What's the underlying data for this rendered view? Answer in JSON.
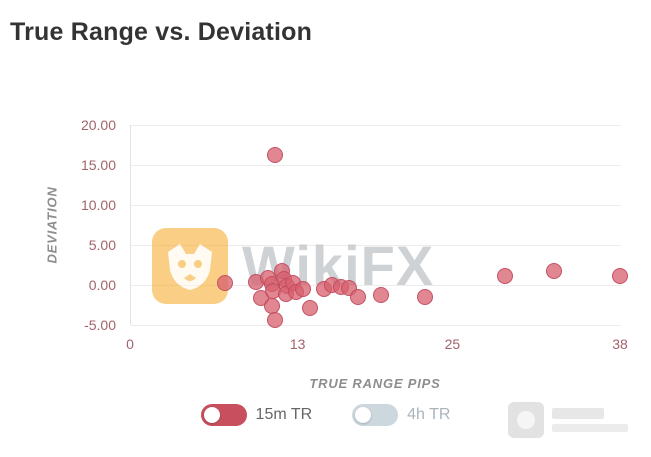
{
  "page": {
    "title": "True Range vs. Deviation"
  },
  "chart_data": {
    "type": "scatter",
    "title": "True Range vs. Deviation",
    "xlabel": "TRUE RANGE PIPS",
    "ylabel": "DEVIATION",
    "xlim": [
      0,
      38
    ],
    "ylim": [
      -5,
      20
    ],
    "x_ticks": [
      0,
      13,
      25,
      38
    ],
    "y_ticks": [
      20,
      15,
      10,
      5,
      0,
      -5
    ],
    "y_tick_labels": [
      "20.00",
      "15.00",
      "10.00",
      "5.00",
      "0.00",
      "-5.00"
    ],
    "grid": "horizontal",
    "legend_position": "bottom",
    "series": [
      {
        "name": "15m TR",
        "color": "rgba(213,95,110,0.75)",
        "border_color": "rgba(193,73,92,0.85)",
        "points": [
          [
            11.2,
            16.2
          ],
          [
            7.3,
            0.3
          ],
          [
            9.7,
            0.4
          ],
          [
            10.1,
            -1.6
          ],
          [
            10.6,
            0.9
          ],
          [
            10.9,
            0.1
          ],
          [
            11.0,
            -0.7
          ],
          [
            10.9,
            -2.6
          ],
          [
            11.2,
            -4.4
          ],
          [
            11.7,
            1.8
          ],
          [
            11.9,
            0.7
          ],
          [
            12.1,
            -0.1
          ],
          [
            12.0,
            -1.1
          ],
          [
            12.6,
            0.3
          ],
          [
            12.8,
            -0.9
          ],
          [
            13.3,
            -0.5
          ],
          [
            13.9,
            -2.9
          ],
          [
            15.0,
            -0.5
          ],
          [
            15.6,
            0.0
          ],
          [
            16.3,
            -0.2
          ],
          [
            16.9,
            -0.4
          ],
          [
            17.6,
            -1.5
          ],
          [
            19.4,
            -1.2
          ],
          [
            22.8,
            -1.5
          ],
          [
            29.0,
            1.1
          ],
          [
            32.8,
            1.7
          ],
          [
            37.9,
            1.1
          ]
        ]
      }
    ],
    "legend": [
      {
        "label": "15m TR",
        "color": "#c8505e",
        "active": true
      },
      {
        "label": "4h TR",
        "color": "#ccd7de",
        "active": false
      }
    ]
  },
  "watermark": {
    "text": "WikiFX",
    "logo_color": "#f7a823"
  },
  "colors": {
    "title_text": "#333333",
    "axis_tick_text": "#a2636b",
    "axis_title_text": "#8d8d8d",
    "point_fill": "#d55f6e",
    "gridline": "#ececec"
  }
}
